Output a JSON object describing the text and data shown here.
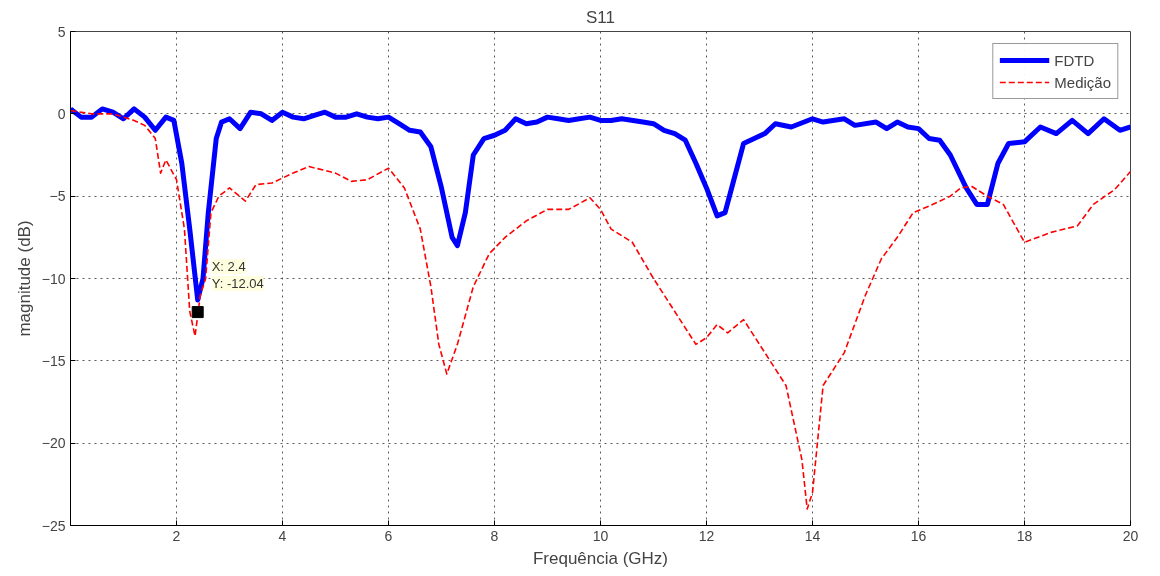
{
  "chart_data": {
    "type": "line",
    "title": "S11",
    "xlabel": "Frequência (GHz)",
    "ylabel": "magnitude (dB)",
    "xlim": [
      0,
      20
    ],
    "xticks": [
      2,
      4,
      6,
      8,
      10,
      12,
      14,
      16,
      18,
      20
    ],
    "ylim": [
      -25,
      5
    ],
    "yticks": [
      -25,
      -20,
      -15,
      -10,
      -5,
      0,
      5
    ],
    "grid": true,
    "legend": "top right",
    "marker": "none",
    "annotations": [
      {
        "text": "X: 2.4\nY: -12.04",
        "x": 2.4,
        "y": -12.04
      }
    ],
    "series": [
      {
        "name": "FDTD",
        "color": "#0000ff",
        "line_style": "solid",
        "x": [
          0,
          0.2,
          0.4,
          0.6,
          0.8,
          1.0,
          1.2,
          1.4,
          1.6,
          1.8,
          1.95,
          2.1,
          2.25,
          2.4,
          2.5,
          2.6,
          2.75,
          2.85,
          3.0,
          3.2,
          3.4,
          3.6,
          3.8,
          4.0,
          4.2,
          4.4,
          4.6,
          4.8,
          5.0,
          5.2,
          5.4,
          5.6,
          5.8,
          6.0,
          6.2,
          6.4,
          6.6,
          6.8,
          7.0,
          7.2,
          7.3,
          7.45,
          7.6,
          7.8,
          8.0,
          8.2,
          8.4,
          8.6,
          8.8,
          9.0,
          9.2,
          9.4,
          9.6,
          9.8,
          10.0,
          10.2,
          10.4,
          10.8,
          11.0,
          11.2,
          11.4,
          11.6,
          11.8,
          12.0,
          12.2,
          12.35,
          12.5,
          12.7,
          12.9,
          13.1,
          13.3,
          13.6,
          14.0,
          14.2,
          14.6,
          14.8,
          15.2,
          15.4,
          15.6,
          15.8,
          16.0,
          16.2,
          16.4,
          16.6,
          16.9,
          17.1,
          17.3,
          17.5,
          17.7,
          18.0,
          18.3,
          18.6,
          18.9,
          19.2,
          19.5,
          19.8,
          20.0
        ],
        "values": [
          0.3,
          -0.2,
          -0.2,
          0.3,
          0.1,
          -0.3,
          0.3,
          -0.2,
          -1.0,
          -0.2,
          -0.4,
          -3,
          -7,
          -11.3,
          -10,
          -6,
          -1.5,
          -0.5,
          -0.3,
          -0.9,
          0.1,
          0,
          -0.4,
          0.1,
          -0.2,
          -0.3,
          -0.1,
          0.1,
          -0.2,
          -0.2,
          0,
          -0.2,
          -0.3,
          -0.2,
          -0.6,
          -1.0,
          -1.1,
          -2.0,
          -4.5,
          -7.5,
          -8,
          -6,
          -2.5,
          -1.5,
          -1.3,
          -1,
          -0.3,
          -0.6,
          -0.5,
          -0.2,
          -0.3,
          -0.4,
          -0.3,
          -0.2,
          -0.4,
          -0.4,
          -0.3,
          -0.5,
          -0.6,
          -1.0,
          -1.2,
          -1.6,
          -3,
          -4.5,
          -6.2,
          -6.0,
          -4.2,
          -1.8,
          -1.5,
          -1.2,
          -0.6,
          -0.8,
          -0.3,
          -0.5,
          -0.3,
          -0.7,
          -0.5,
          -0.9,
          -0.5,
          -0.8,
          -0.9,
          -1.5,
          -1.6,
          -2.5,
          -4.5,
          -5.5,
          -5.5,
          -3,
          -1.8,
          -1.7,
          -0.8,
          -1.2,
          -0.4,
          -1.2,
          -0.3,
          -1.0,
          -0.8
        ]
      },
      {
        "name": "Medição",
        "color": "#ff0000",
        "line_style": "dashed",
        "x": [
          0,
          0.4,
          0.8,
          1.2,
          1.4,
          1.6,
          1.7,
          1.8,
          2.0,
          2.15,
          2.25,
          2.35,
          2.45,
          2.55,
          2.65,
          2.8,
          3.0,
          3.3,
          3.5,
          3.8,
          4.2,
          4.5,
          5.0,
          5.3,
          5.6,
          6.0,
          6.3,
          6.6,
          6.8,
          6.95,
          7.1,
          7.3,
          7.6,
          7.9,
          8.2,
          8.6,
          9.0,
          9.4,
          9.8,
          10.0,
          10.2,
          10.6,
          11.0,
          11.5,
          11.8,
          12.0,
          12.2,
          12.4,
          12.7,
          13.0,
          13.5,
          13.8,
          13.9,
          14.0,
          14.2,
          14.6,
          15.0,
          15.3,
          15.6,
          15.9,
          16.2,
          16.6,
          16.8,
          17.0,
          17.3,
          17.6,
          18.0,
          18.5,
          19.0,
          19.3,
          19.7,
          20.0
        ],
        "values": [
          0.2,
          0,
          0,
          -0.4,
          -0.7,
          -1.5,
          -3.6,
          -2.8,
          -4,
          -7,
          -12,
          -13.5,
          -11,
          -10,
          -6,
          -5,
          -4.5,
          -5.3,
          -4.3,
          -4.2,
          -3.6,
          -3.2,
          -3.6,
          -4.1,
          -4.0,
          -3.3,
          -4.5,
          -7,
          -10.5,
          -14,
          -15.8,
          -14,
          -10.5,
          -8.5,
          -7.5,
          -6.5,
          -5.8,
          -5.8,
          -5.1,
          -5.8,
          -7,
          -7.8,
          -10,
          -12.5,
          -14,
          -13.6,
          -12.8,
          -13.3,
          -12.5,
          -14,
          -16.5,
          -21,
          -24,
          -23,
          -16.5,
          -14.5,
          -11,
          -8.8,
          -7.5,
          -6,
          -5.6,
          -5,
          -4.5,
          -4.4,
          -5,
          -5.5,
          -7.8,
          -7.2,
          -6.8,
          -5.5,
          -4.6,
          -3.5
        ]
      }
    ]
  }
}
